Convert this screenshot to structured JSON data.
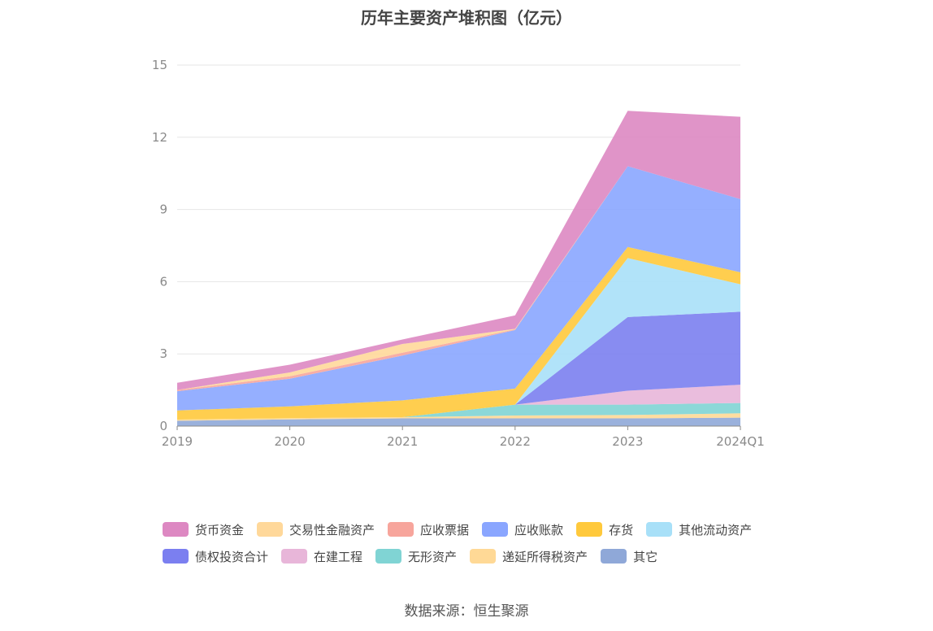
{
  "title": "历年主要资产堆积图（亿元）",
  "source": "数据来源：恒生聚源",
  "chart_data": {
    "type": "area",
    "stacked": true,
    "title": "历年主要资产堆积图（亿元）",
    "categories": [
      "2019",
      "2020",
      "2021",
      "2022",
      "2023",
      "2024Q1"
    ],
    "ylim": [
      0,
      15
    ],
    "yticks": [
      "0",
      "3",
      "6",
      "9",
      "12",
      "15"
    ],
    "grid": true,
    "legend_position": "bottom",
    "series": [
      {
        "name": "其它",
        "color": "#8fa8d8",
        "values": [
          0.22,
          0.28,
          0.32,
          0.32,
          0.32,
          0.35
        ]
      },
      {
        "name": "递延所得税资产",
        "color": "#ffd996",
        "values": [
          0.05,
          0.05,
          0.05,
          0.12,
          0.14,
          0.18
        ]
      },
      {
        "name": "无形资产",
        "color": "#80d4d4",
        "values": [
          0.0,
          0.0,
          0.0,
          0.45,
          0.43,
          0.43
        ]
      },
      {
        "name": "在建工程",
        "color": "#e8b6d9",
        "values": [
          0.0,
          0.0,
          0.0,
          0.0,
          0.58,
          0.76
        ]
      },
      {
        "name": "债权投资合计",
        "color": "#7b7ff0",
        "values": [
          0.0,
          0.0,
          0.0,
          0.0,
          3.06,
          3.03
        ]
      },
      {
        "name": "其他流动资产",
        "color": "#a8e0f8",
        "values": [
          0.0,
          0.0,
          0.0,
          0.0,
          2.45,
          1.14
        ]
      },
      {
        "name": "存货",
        "color": "#ffc93c",
        "values": [
          0.38,
          0.49,
          0.7,
          0.67,
          0.46,
          0.5
        ]
      },
      {
        "name": "应收账款",
        "color": "#8aa6ff",
        "values": [
          0.8,
          1.15,
          1.86,
          2.43,
          3.36,
          3.04
        ]
      },
      {
        "name": "应收票据",
        "color": "#f7a59c",
        "values": [
          0.05,
          0.1,
          0.12,
          0.03,
          0.0,
          0.0
        ]
      },
      {
        "name": "交易性金融资产",
        "color": "#ffd89a",
        "values": [
          0.0,
          0.16,
          0.36,
          0.02,
          0.0,
          0.0
        ]
      },
      {
        "name": "货币资金",
        "color": "#dd88c2",
        "values": [
          0.3,
          0.32,
          0.19,
          0.56,
          2.3,
          3.42
        ]
      }
    ]
  },
  "legend": {
    "rows": [
      [
        {
          "label": "货币资金",
          "color": "#dd88c2"
        },
        {
          "label": "交易性金融资产",
          "color": "#ffd89a"
        },
        {
          "label": "应收票据",
          "color": "#f7a59c"
        },
        {
          "label": "应收账款",
          "color": "#8aa6ff"
        },
        {
          "label": "存货",
          "color": "#ffc93c"
        },
        {
          "label": "其他流动资产",
          "color": "#a8e0f8"
        }
      ],
      [
        {
          "label": "债权投资合计",
          "color": "#7b7ff0"
        },
        {
          "label": "在建工程",
          "color": "#e8b6d9"
        },
        {
          "label": "无形资产",
          "color": "#80d4d4"
        },
        {
          "label": "递延所得税资产",
          "color": "#ffd996"
        },
        {
          "label": "其它",
          "color": "#8fa8d8"
        }
      ]
    ]
  }
}
